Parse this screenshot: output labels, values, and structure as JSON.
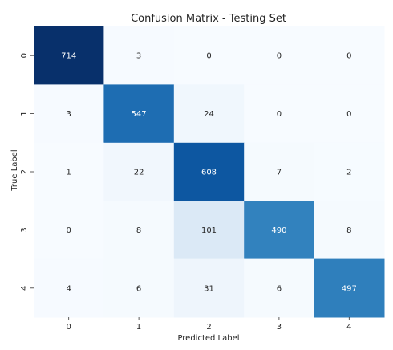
{
  "chart_data": {
    "type": "heatmap",
    "title": "Confusion Matrix - Testing Set",
    "xlabel": "Predicted Label",
    "ylabel": "True Label",
    "x_categories": [
      "0",
      "1",
      "2",
      "3",
      "4"
    ],
    "y_categories": [
      "0",
      "1",
      "2",
      "3",
      "4"
    ],
    "values": [
      [
        714,
        3,
        0,
        0,
        0
      ],
      [
        3,
        547,
        24,
        0,
        0
      ],
      [
        1,
        22,
        608,
        7,
        2
      ],
      [
        0,
        8,
        101,
        490,
        8
      ],
      [
        4,
        6,
        31,
        6,
        497
      ]
    ],
    "colormap": "Blues",
    "colors": {
      "low": "#f7fbff",
      "high": "#08306b",
      "text_dark": "#262626",
      "text_light": "#ffffff"
    },
    "value_range": [
      0,
      714
    ],
    "colorbar": false,
    "grid": false
  }
}
